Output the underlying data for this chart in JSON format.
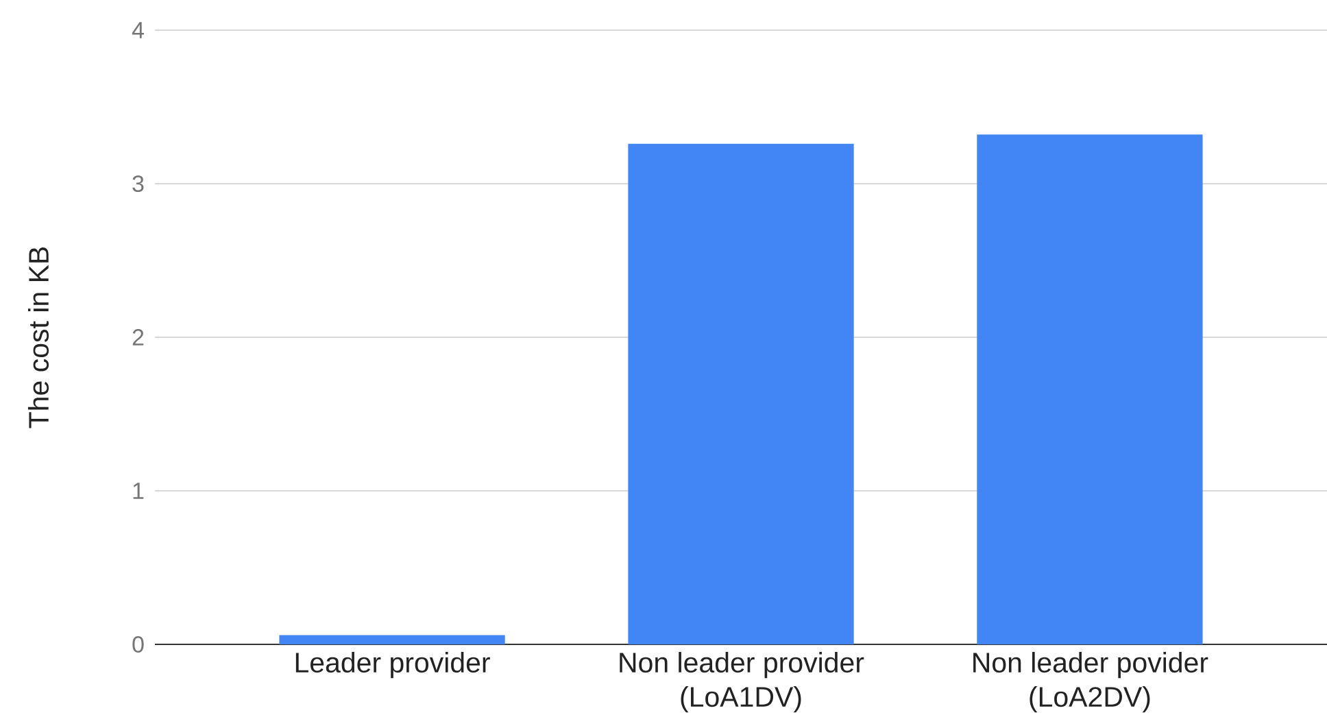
{
  "chart_data": {
    "type": "bar",
    "ylabel": "The cost in KB",
    "categories": [
      "Leader provider",
      "Non leader provider (LoA1DV)",
      "Non leader povider (LoA2DV)"
    ],
    "values": [
      0.06,
      3.26,
      3.32
    ],
    "color": "#4285f4",
    "ylim": [
      0,
      4
    ],
    "yticks": [
      0,
      1,
      2,
      3,
      4
    ],
    "grid": "y"
  }
}
